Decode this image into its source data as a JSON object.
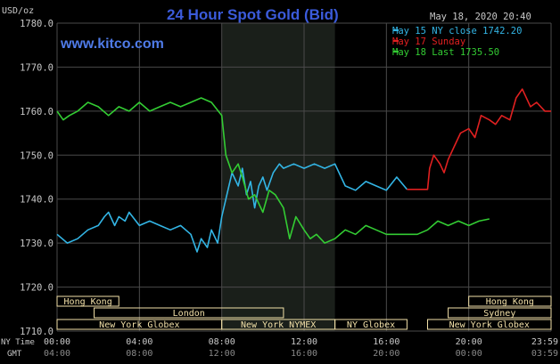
{
  "header": {
    "title": "24 Hour Spot Gold (Bid)",
    "site": "www.kitco.com",
    "datetime": "May 18, 2020 20:40",
    "unit": "USD/oz"
  },
  "legend": [
    {
      "label": "May 15 NY close 1742.20",
      "color": "#33b5e5"
    },
    {
      "label": "May 17 Sunday",
      "color": "#e02020"
    },
    {
      "label": "May 18 Last 1735.50",
      "color": "#33cc33"
    }
  ],
  "colors": {
    "background": "#000000",
    "grid": "#4a4a4a",
    "title": "#3b5bdb",
    "site": "#4f7be8",
    "text": "#c8c8c8",
    "session_fill": "#1a1f1a",
    "session_box": "#f2e0a8"
  },
  "sessions": [
    {
      "label": "Hong Kong",
      "start": 0.0,
      "end": 3.0,
      "row": 0
    },
    {
      "label": "London",
      "start": 1.8,
      "end": 11.0,
      "row": 1
    },
    {
      "label": "New York Globex",
      "start": 0.0,
      "end": 8.0,
      "row": 2
    },
    {
      "label": "New York NYMEX",
      "start": 8.0,
      "end": 13.5,
      "row": 2
    },
    {
      "label": "NY Globex",
      "start": 13.5,
      "end": 17.0,
      "row": 2
    },
    {
      "label": "Hong Kong",
      "start": 20.0,
      "end": 24.0,
      "row": 0
    },
    {
      "label": "Sydney",
      "start": 19.0,
      "end": 24.0,
      "row": 1
    },
    {
      "label": "New York Globex",
      "start": 18.0,
      "end": 24.0,
      "row": 2
    }
  ],
  "x_axis": {
    "row1_label": "NY Time",
    "row2_label": "GMT",
    "ticks_ny": [
      "00:00",
      "04:00",
      "08:00",
      "12:00",
      "16:00",
      "20:00",
      "23:59"
    ],
    "ticks_gmt": [
      "04:00",
      "08:00",
      "12:00",
      "16:00",
      "20:00",
      "00:00",
      "03:59"
    ]
  },
  "chart_data": {
    "type": "line",
    "title": "24 Hour Spot Gold (Bid)",
    "ylabel": "USD/oz",
    "ylim": [
      1710,
      1780
    ],
    "yticks": [
      "1710.0",
      "1720.0",
      "1730.0",
      "1740.0",
      "1750.0",
      "1760.0",
      "1770.0",
      "1780.0"
    ],
    "xlim": [
      0,
      24
    ],
    "shaded_region": [
      8.0,
      13.5
    ],
    "grid": true,
    "legend_position": "top-right",
    "series": [
      {
        "name": "May 15 NY close 1742.20",
        "color": "#33b5e5",
        "x": [
          0.0,
          0.5,
          1.0,
          1.5,
          2.0,
          2.3,
          2.5,
          2.8,
          3.0,
          3.3,
          3.5,
          4.0,
          4.5,
          5.0,
          5.5,
          6.0,
          6.5,
          6.8,
          7.0,
          7.3,
          7.5,
          7.8,
          8.0,
          8.3,
          8.5,
          8.8,
          9.0,
          9.2,
          9.4,
          9.6,
          9.8,
          10.0,
          10.2,
          10.5,
          10.8,
          11.0,
          11.5,
          12.0,
          12.5,
          13.0,
          13.5,
          14.0,
          14.5,
          15.0,
          15.5,
          16.0,
          16.5,
          17.0
        ],
        "values": [
          1732,
          1730,
          1731,
          1733,
          1734,
          1736,
          1737,
          1734,
          1736,
          1735,
          1737,
          1734,
          1735,
          1734,
          1733,
          1734,
          1732,
          1728,
          1731,
          1729,
          1733,
          1730,
          1736,
          1742,
          1746,
          1743,
          1747,
          1741,
          1744,
          1738,
          1743,
          1745,
          1742,
          1746,
          1748,
          1747,
          1748,
          1747,
          1748,
          1747,
          1748,
          1743,
          1742,
          1744,
          1743,
          1742,
          1745,
          1742.2
        ]
      },
      {
        "name": "May 17 Sunday",
        "color": "#e02020",
        "x": [
          17.0,
          17.5,
          18.0,
          18.1,
          18.3,
          18.6,
          18.8,
          19.0,
          19.3,
          19.6,
          20.0,
          20.3,
          20.6,
          21.0,
          21.3,
          21.6,
          22.0,
          22.3,
          22.6,
          23.0,
          23.3,
          23.7,
          24.0
        ],
        "values": [
          1742.2,
          1742.2,
          1742.2,
          1747,
          1750,
          1748,
          1746,
          1749,
          1752,
          1755,
          1756,
          1754,
          1759,
          1758,
          1757,
          1759,
          1758,
          1763,
          1765,
          1761,
          1762,
          1760,
          1760
        ]
      },
      {
        "name": "May 18 Last 1735.50",
        "color": "#33cc33",
        "x": [
          0.0,
          0.3,
          0.6,
          1.0,
          1.5,
          2.0,
          2.5,
          3.0,
          3.5,
          4.0,
          4.5,
          5.0,
          5.5,
          6.0,
          6.5,
          7.0,
          7.5,
          8.0,
          8.2,
          8.5,
          8.8,
          9.0,
          9.3,
          9.6,
          10.0,
          10.3,
          10.6,
          11.0,
          11.3,
          11.6,
          12.0,
          12.3,
          12.6,
          13.0,
          13.5,
          14.0,
          14.5,
          15.0,
          15.5,
          16.0,
          16.5,
          17.0,
          17.5,
          18.0,
          18.5,
          19.0,
          19.5,
          20.0,
          20.5,
          21.0
        ],
        "values": [
          1760,
          1758,
          1759,
          1760,
          1762,
          1761,
          1759,
          1761,
          1760,
          1762,
          1760,
          1761,
          1762,
          1761,
          1762,
          1763,
          1762,
          1759,
          1750,
          1746,
          1748,
          1745,
          1740,
          1741,
          1737,
          1742,
          1741,
          1738,
          1731,
          1736,
          1733,
          1731,
          1732,
          1730,
          1731,
          1733,
          1732,
          1734,
          1733,
          1732,
          1732,
          1732,
          1732,
          1733,
          1735,
          1734,
          1735,
          1734,
          1735,
          1735.5
        ]
      }
    ]
  }
}
